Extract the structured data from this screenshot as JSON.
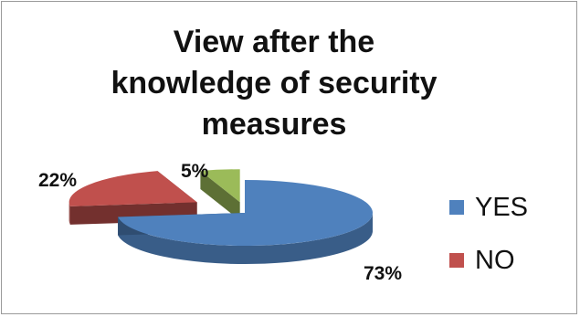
{
  "chart_data": {
    "type": "pie",
    "title": "View after the knowledge of security measures",
    "categories": [
      "YES",
      "NO",
      ""
    ],
    "values": [
      73,
      22,
      5
    ],
    "data_labels": [
      "73%",
      "22%",
      "5%"
    ],
    "colors": [
      "#4f81bd",
      "#c0504d",
      "#9bbb59"
    ],
    "legend": {
      "position": "right",
      "entries": [
        "YES",
        "NO"
      ]
    },
    "style": "3d-exploded"
  }
}
